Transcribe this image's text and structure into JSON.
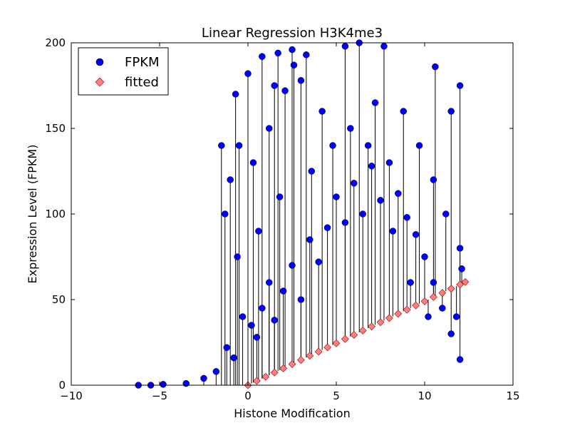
{
  "chart_data": {
    "type": "scatter",
    "title": "Linear Regression H3K4me3",
    "xlabel": "Histone Modification",
    "ylabel": "Expression Level (FPKM)",
    "xlim": [
      -10,
      15
    ],
    "ylim": [
      0,
      200
    ],
    "xticks": [
      -10,
      -5,
      0,
      5,
      10,
      15
    ],
    "xtick_labels": [
      "−10",
      "−5",
      "0",
      "5",
      "10",
      "15"
    ],
    "yticks": [
      0,
      50,
      100,
      150,
      200
    ],
    "ytick_labels": [
      "0",
      "50",
      "100",
      "150",
      "200"
    ],
    "legend": {
      "placement": "top-left",
      "entries": [
        "FPKM",
        "fitted"
      ]
    },
    "colors": {
      "fpkm": "#0000ff",
      "fitted": "#ff7f7f",
      "fitted_edge": "#8b0000",
      "connector": "#000000"
    },
    "series": [
      {
        "name": "FPKM",
        "marker": "circle",
        "points": [
          [
            -6.2,
            0
          ],
          [
            -5.5,
            0
          ],
          [
            -4.8,
            0.5
          ],
          [
            -3.5,
            1
          ],
          [
            -2.5,
            4
          ],
          [
            -1.8,
            8
          ],
          [
            -1.2,
            22
          ],
          [
            -0.8,
            16
          ],
          [
            -0.3,
            40
          ],
          [
            0.2,
            35
          ],
          [
            0.5,
            28
          ],
          [
            0.8,
            45
          ],
          [
            1.2,
            60
          ],
          [
            1.5,
            38
          ],
          [
            2.0,
            55
          ],
          [
            2.5,
            70
          ],
          [
            3.0,
            50
          ],
          [
            3.5,
            85
          ],
          [
            4.0,
            72
          ],
          [
            4.5,
            92
          ],
          [
            5.0,
            110
          ],
          [
            5.5,
            95
          ],
          [
            6.0,
            118
          ],
          [
            6.5,
            100
          ],
          [
            7.0,
            128
          ],
          [
            7.5,
            108
          ],
          [
            8.0,
            130
          ],
          [
            8.5,
            112
          ],
          [
            9.0,
            98
          ],
          [
            9.5,
            88
          ],
          [
            10.0,
            75
          ],
          [
            10.5,
            60
          ],
          [
            11.0,
            45
          ],
          [
            11.5,
            30
          ],
          [
            12.0,
            15
          ],
          [
            -0.7,
            170
          ],
          [
            0.0,
            182
          ],
          [
            0.8,
            192
          ],
          [
            1.7,
            194
          ],
          [
            2.5,
            196
          ],
          [
            3.3,
            193
          ],
          [
            2.6,
            187
          ],
          [
            2.1,
            172
          ],
          [
            1.5,
            175
          ],
          [
            3.0,
            178
          ],
          [
            5.5,
            198
          ],
          [
            6.3,
            200
          ],
          [
            7.7,
            198
          ],
          [
            -1.5,
            140
          ],
          [
            -1.0,
            120
          ],
          [
            -0.5,
            140
          ],
          [
            0.3,
            130
          ],
          [
            1.2,
            150
          ],
          [
            4.2,
            160
          ],
          [
            5.8,
            150
          ],
          [
            7.2,
            165
          ],
          [
            8.8,
            160
          ],
          [
            9.7,
            140
          ],
          [
            10.5,
            120
          ],
          [
            11.2,
            100
          ],
          [
            12.0,
            80
          ],
          [
            12.0,
            175
          ],
          [
            11.5,
            160
          ],
          [
            10.6,
            186
          ],
          [
            12.1,
            68
          ],
          [
            11.8,
            40
          ],
          [
            -1.3,
            100
          ],
          [
            -0.6,
            75
          ],
          [
            0.6,
            90
          ],
          [
            1.8,
            110
          ],
          [
            3.6,
            125
          ],
          [
            4.8,
            140
          ],
          [
            6.8,
            140
          ],
          [
            8.2,
            90
          ],
          [
            9.2,
            60
          ],
          [
            10.2,
            40
          ]
        ]
      },
      {
        "name": "fitted",
        "marker": "diamond",
        "slope": 4.9,
        "intercept": 0,
        "x": [
          0,
          0.5,
          1,
          1.5,
          2,
          2.5,
          3,
          3.5,
          4,
          4.5,
          5,
          5.5,
          6,
          6.5,
          7,
          7.5,
          8,
          8.5,
          9,
          9.5,
          10,
          10.5,
          11,
          11.5,
          12,
          12.3
        ],
        "y": [
          0,
          2.5,
          4.9,
          7.4,
          9.8,
          12.3,
          14.7,
          17.2,
          19.6,
          22.1,
          24.5,
          27.0,
          29.4,
          31.9,
          34.3,
          36.8,
          39.2,
          41.7,
          44.1,
          46.6,
          49.0,
          51.5,
          53.9,
          56.4,
          58.8,
          60.3
        ]
      }
    ]
  }
}
